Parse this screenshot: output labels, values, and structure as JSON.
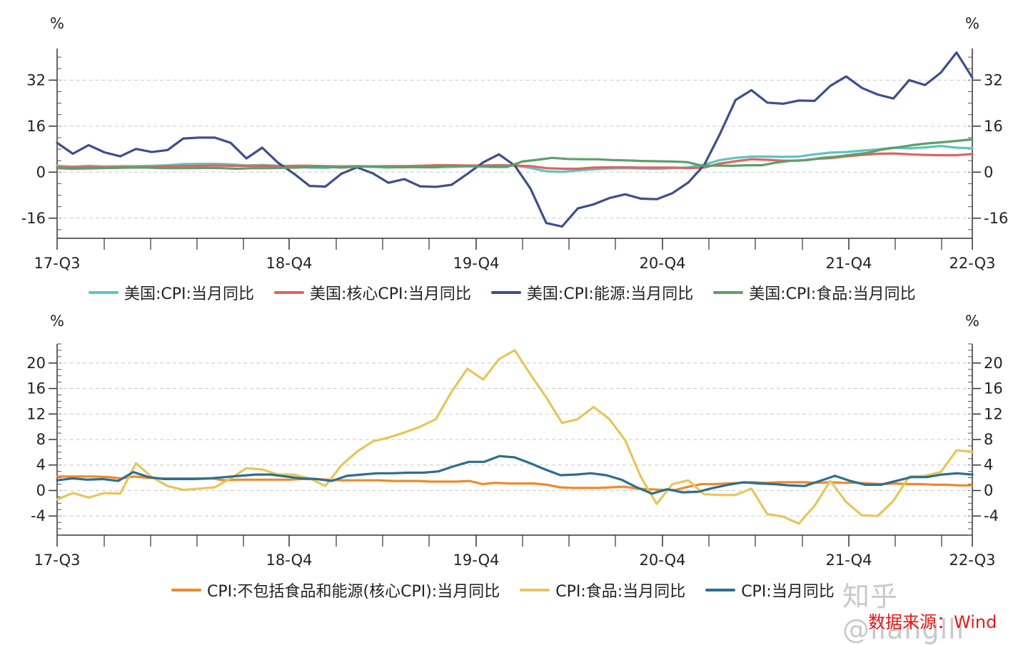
{
  "chart_data": [
    {
      "type": "line",
      "y_unit_left": "%",
      "y_unit_right": "%",
      "x_tick_labels": [
        "17-Q3",
        "18-Q4",
        "19-Q4",
        "20-Q4",
        "21-Q4",
        "22-Q3"
      ],
      "y_ticks": [
        -16,
        0,
        16,
        32
      ],
      "ylim": [
        -23,
        43
      ],
      "grid": "horizontal dashed",
      "series": [
        {
          "name": "美国:CPI:当月同比",
          "color": "#5fc4bf",
          "values": [
            2.2,
            1.9,
            2.2,
            2.0,
            2.1,
            2.1,
            2.2,
            2.4,
            2.8,
            2.9,
            2.9,
            2.7,
            2.3,
            2.5,
            2.2,
            1.9,
            1.6,
            1.5,
            1.9,
            2.0,
            1.8,
            1.6,
            1.8,
            1.7,
            1.7,
            1.8,
            2.1,
            2.3,
            2.5,
            2.3,
            1.5,
            0.3,
            0.1,
            0.6,
            1.0,
            1.3,
            1.4,
            1.3,
            1.2,
            1.4,
            1.7,
            2.6,
            4.2,
            5.0,
            5.4,
            5.4,
            5.3,
            5.4,
            6.2,
            6.8,
            7.0,
            7.5,
            7.9,
            8.5,
            8.3,
            8.6,
            9.1,
            8.5,
            8.3
          ]
        },
        {
          "name": "美国:核心CPI:当月同比",
          "color": "#de6560",
          "values": [
            1.7,
            1.7,
            1.8,
            1.7,
            1.7,
            1.8,
            1.8,
            2.1,
            2.1,
            2.2,
            2.3,
            2.2,
            2.2,
            2.2,
            2.1,
            2.2,
            2.2,
            2.1,
            2.0,
            2.1,
            2.0,
            2.1,
            2.1,
            2.2,
            2.4,
            2.4,
            2.3,
            2.3,
            2.3,
            2.3,
            2.1,
            1.4,
            1.2,
            1.2,
            1.6,
            1.7,
            1.7,
            1.6,
            1.6,
            1.6,
            1.4,
            1.6,
            3.0,
            3.8,
            4.5,
            4.3,
            4.0,
            4.0,
            4.6,
            4.9,
            5.5,
            6.0,
            6.4,
            6.5,
            6.2,
            6.0,
            5.9,
            5.9,
            6.3
          ]
        },
        {
          "name": "美国:CPI:能源:当月同比",
          "color": "#3f4e8c",
          "values": [
            10.2,
            6.4,
            9.4,
            6.9,
            5.5,
            8.1,
            7.0,
            7.7,
            11.7,
            12.0,
            12.0,
            10.2,
            4.8,
            8.5,
            3.3,
            -0.5,
            -4.8,
            -5.0,
            -0.6,
            1.7,
            -0.4,
            -3.7,
            -2.4,
            -4.9,
            -5.1,
            -4.4,
            -0.6,
            3.4,
            6.2,
            2.3,
            -5.7,
            -17.7,
            -18.9,
            -12.6,
            -11.2,
            -9.0,
            -7.7,
            -9.2,
            -9.4,
            -7.3,
            -3.6,
            2.4,
            13.2,
            25.1,
            28.5,
            24.2,
            23.8,
            24.9,
            24.8,
            30.0,
            33.3,
            29.3,
            27.0,
            25.6,
            32.0,
            30.3,
            34.6,
            41.6,
            32.9
          ]
        },
        {
          "name": "美国:CPI:食品:当月同比",
          "color": "#5c9f6a",
          "values": [
            1.4,
            1.2,
            1.3,
            1.4,
            1.5,
            1.6,
            1.6,
            1.4,
            1.4,
            1.4,
            1.5,
            1.4,
            1.2,
            1.4,
            1.4,
            1.5,
            1.6,
            1.8,
            1.8,
            1.6,
            1.9,
            2.0,
            1.8,
            1.7,
            1.8,
            1.7,
            2.1,
            2.0,
            2.0,
            1.8,
            1.8,
            3.7,
            4.3,
            5.0,
            4.6,
            4.5,
            4.5,
            4.2,
            4.1,
            3.9,
            3.8,
            3.7,
            3.5,
            2.2,
            2.3,
            2.2,
            2.4,
            2.4,
            3.4,
            4.0,
            4.2,
            5.0,
            5.4,
            6.1,
            6.7,
            7.9,
            8.6,
            9.4,
            10.0,
            10.4,
            10.9,
            11.4
          ]
        }
      ]
    },
    {
      "type": "line",
      "y_unit_left": "%",
      "y_unit_right": "%",
      "x_tick_labels": [
        "17-Q3",
        "18-Q4",
        "19-Q4",
        "20-Q4",
        "21-Q4",
        "22-Q3"
      ],
      "y_ticks": [
        -4,
        0,
        4,
        8,
        12,
        16,
        20
      ],
      "ylim": [
        -7,
        23
      ],
      "grid": "horizontal dashed",
      "series": [
        {
          "name": "CPI:不包括食品和能源(核心CPI):当月同比",
          "color": "#ee8a2b",
          "values": [
            2.2,
            2.2,
            2.2,
            2.2,
            2.1,
            1.9,
            2.2,
            2.0,
            1.9,
            1.9,
            1.9,
            1.9,
            1.9,
            1.6,
            1.7,
            1.7,
            1.7,
            1.7,
            1.7,
            1.8,
            1.8,
            1.7,
            1.6,
            1.6,
            1.6,
            1.6,
            1.5,
            1.5,
            1.5,
            1.4,
            1.4,
            1.4,
            1.5,
            1.0,
            1.2,
            1.1,
            1.1,
            1.1,
            0.9,
            0.5,
            0.4,
            0.4,
            0.4,
            0.5,
            0.6,
            0.3,
            0.2,
            0.1,
            0.1,
            0.6,
            1.0,
            1.0,
            1.1,
            1.2,
            1.3,
            1.2,
            1.3,
            1.3,
            1.3,
            1.2,
            1.3,
            1.2,
            1.2,
            1.1,
            1.0,
            1.1,
            1.0,
            1.0,
            0.9,
            0.9,
            0.8,
            0.8
          ]
        },
        {
          "name": "CPI:食品:当月同比",
          "color": "#e6c65b",
          "values": [
            -1.4,
            -0.4,
            -1.1,
            -0.4,
            -0.5,
            4.3,
            2.1,
            0.7,
            0.1,
            0.3,
            0.5,
            1.9,
            3.5,
            3.3,
            2.5,
            2.5,
            1.9,
            0.7,
            3.9,
            6.1,
            7.7,
            8.3,
            9.1,
            10.0,
            11.2,
            15.5,
            19.1,
            17.4,
            20.6,
            22.0,
            18.2,
            14.6,
            10.6,
            11.2,
            13.1,
            11.2,
            7.9,
            2.1,
            -2.1,
            1.0,
            1.6,
            -0.6,
            -0.7,
            -0.7,
            0.3,
            -3.7,
            -4.1,
            -5.2,
            -2.4,
            1.5,
            -1.8,
            -3.9,
            -4.0,
            -1.6,
            2.2,
            2.3,
            2.9,
            6.3,
            6.1
          ]
        },
        {
          "name": "CPI:当月同比",
          "color": "#2b6f8f",
          "values": [
            1.6,
            1.9,
            1.7,
            1.8,
            1.5,
            2.9,
            2.1,
            1.8,
            1.8,
            1.8,
            1.9,
            2.1,
            2.3,
            2.5,
            2.5,
            2.2,
            1.9,
            1.8,
            1.5,
            2.3,
            2.5,
            2.7,
            2.7,
            2.8,
            2.8,
            3.0,
            3.8,
            4.5,
            4.5,
            5.4,
            5.2,
            4.3,
            3.3,
            2.4,
            2.5,
            2.7,
            2.4,
            1.7,
            0.5,
            -0.5,
            0.2,
            -0.3,
            -0.2,
            0.4,
            0.9,
            1.3,
            1.1,
            1.0,
            0.8,
            0.7,
            1.5,
            2.3,
            1.5,
            0.9,
            0.9,
            1.5,
            2.1,
            2.1,
            2.5,
            2.7,
            2.5
          ]
        }
      ]
    }
  ],
  "watermark": "知乎 @llanglli",
  "source_note": "数据来源：Wind"
}
